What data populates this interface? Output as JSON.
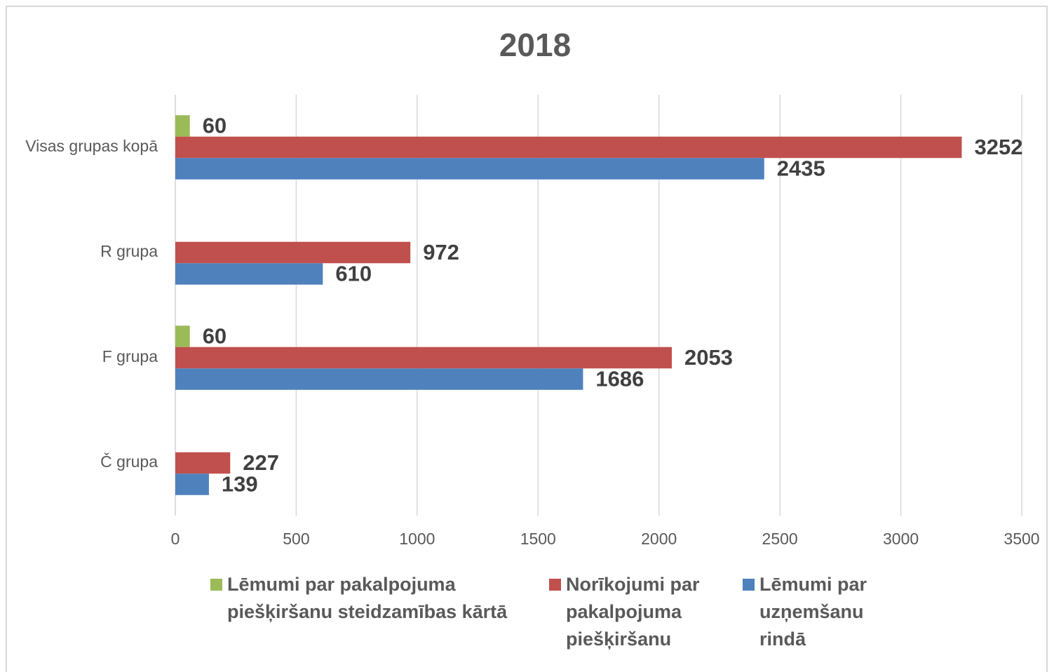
{
  "chart_data": {
    "type": "bar",
    "orientation": "horizontal",
    "title": "2018",
    "categories": [
      "Visas grupas kopā",
      "R grupa",
      "F grupa",
      "Č grupa"
    ],
    "series": [
      {
        "name": "Lēmumi par pakalpojuma piešķiršanu steidzamības kārtā",
        "color": "#9bbb59",
        "values": [
          60,
          null,
          60,
          null
        ]
      },
      {
        "name": "Norīkojumi par pakalpojuma piešķiršanu",
        "color": "#c0504d",
        "values": [
          3252,
          972,
          2053,
          227
        ]
      },
      {
        "name": "Lēmumi par uzņemšanu rindā",
        "color": "#4f81bd",
        "values": [
          2435,
          610,
          1686,
          139
        ]
      }
    ],
    "xlim": [
      0,
      3500
    ],
    "xticks": [
      0,
      500,
      1000,
      1500,
      2000,
      2500,
      3000,
      3500
    ],
    "grid": true,
    "legend": "bottom"
  }
}
